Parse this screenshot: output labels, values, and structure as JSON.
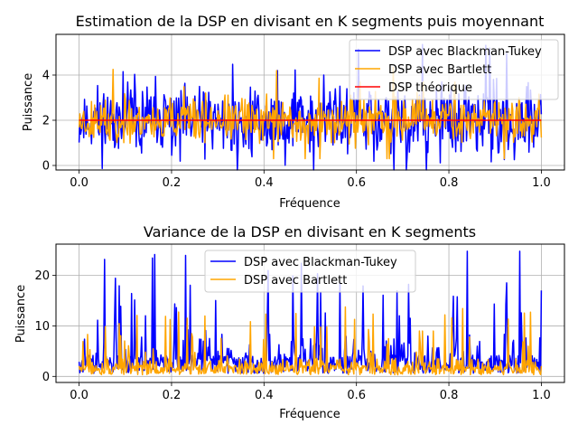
{
  "chart_data": [
    {
      "type": "line",
      "title": "Estimation de la DSP en divisant en K segments puis moyennant",
      "xlabel": "Fréquence",
      "ylabel": "Puissance",
      "xlim": [
        -0.05,
        1.05
      ],
      "ylim": [
        -0.2,
        5.8
      ],
      "xticks": [
        0.0,
        0.2,
        0.4,
        0.6,
        0.8,
        1.0
      ],
      "xtick_labels": [
        "0.0",
        "0.2",
        "0.4",
        "0.6",
        "0.8",
        "1.0"
      ],
      "yticks": [
        0,
        2,
        4
      ],
      "ytick_labels": [
        "0",
        "2",
        "4"
      ],
      "grid": true,
      "legend_position": "upper right",
      "series": [
        {
          "name": "DSP avec Blackman-Tukey",
          "color": "#0000ff",
          "mean": 2.0,
          "spread": 1.2,
          "seed": 11,
          "points": 600,
          "min": -0.2,
          "max": 5.6
        },
        {
          "name": "DSP avec Bartlett",
          "color": "#ffa500",
          "mean": 2.0,
          "spread": 0.75,
          "seed": 23,
          "points": 600,
          "min": 0.3,
          "max": 4.4
        },
        {
          "name": "DSP théorique",
          "color": "#ff0000",
          "constant": 2.0
        }
      ]
    },
    {
      "type": "line",
      "title": "Variance de la DSP en divisant en K segments",
      "xlabel": "Fréquence",
      "ylabel": "Puissance",
      "xlim": [
        -0.05,
        1.05
      ],
      "ylim": [
        -1.2,
        26.2
      ],
      "xticks": [
        0.0,
        0.2,
        0.4,
        0.6,
        0.8,
        1.0
      ],
      "xtick_labels": [
        "0.0",
        "0.2",
        "0.4",
        "0.6",
        "0.8",
        "1.0"
      ],
      "yticks": [
        0,
        10,
        20
      ],
      "ytick_labels": [
        "0",
        "10",
        "20"
      ],
      "grid": true,
      "legend_position": "upper center",
      "series": [
        {
          "name": "DSP avec Blackman-Tukey",
          "color": "#0000ff",
          "mean": 3.0,
          "spread": 5.0,
          "seed": 37,
          "points": 600,
          "min": 0.0,
          "max": 25.0,
          "spiky": true
        },
        {
          "name": "DSP avec Bartlett",
          "color": "#ffa500",
          "mean": 1.6,
          "spread": 2.0,
          "seed": 51,
          "points": 600,
          "min": 0.0,
          "max": 13.8,
          "spiky": true
        }
      ]
    }
  ]
}
